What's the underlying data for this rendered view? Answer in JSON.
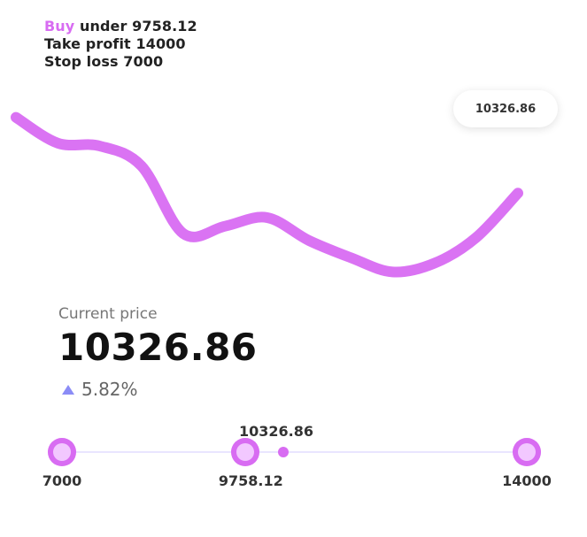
{
  "colors": {
    "accent": "#d86cf2",
    "accent_light": "#f2c8ff",
    "line": "#d86cf2"
  },
  "signal": {
    "buy_label": "Buy",
    "under_text": "under 9758.12",
    "take_profit_text": "Take profit 14000",
    "stop_loss_text": "Stop loss 7000"
  },
  "chart_data": {
    "type": "line",
    "x": [
      0,
      1,
      2,
      3,
      4,
      5,
      6,
      7,
      8,
      9,
      10,
      11,
      12
    ],
    "values": [
      11650,
      11200,
      11150,
      10800,
      9620,
      9750,
      9900,
      9500,
      9200,
      8950,
      9100,
      9550,
      10326.86
    ],
    "title": "",
    "xlabel": "",
    "ylabel": "",
    "ylim": [
      8600,
      12000
    ],
    "grid": false,
    "legend": "none",
    "last_point_label": "10326.86"
  },
  "current": {
    "label": "Current price",
    "price": "10326.86",
    "change": "5.82%"
  },
  "range": {
    "min_label": "7000",
    "mid_label": "9758.12",
    "max_label": "14000",
    "marker_label": "10326.86",
    "min_value": 7000,
    "mid_value": 9758.12,
    "max_value": 14000,
    "marker_value": 10326.86
  }
}
